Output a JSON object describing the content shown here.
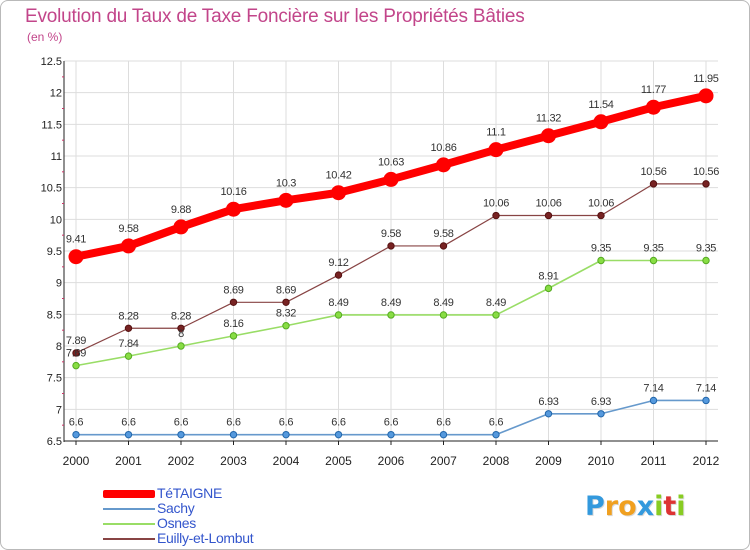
{
  "chart_data": {
    "type": "line",
    "title": "Evolution du Taux de Taxe Foncière sur les Propriétés Bâties",
    "subtitle": "(en %)",
    "x": [
      "2000",
      "2001",
      "2002",
      "2003",
      "2004",
      "2005",
      "2006",
      "2007",
      "2008",
      "2009",
      "2010",
      "2011",
      "2012"
    ],
    "ylim": [
      6.5,
      12.5
    ],
    "yticks": [
      "6.5",
      "7",
      "7.5",
      "8",
      "8.5",
      "9",
      "9.5",
      "10",
      "10.5",
      "11",
      "11.5",
      "12",
      "12.5"
    ],
    "grid": true,
    "legend_placement": "bottom-left",
    "series": [
      {
        "name": "TéTAIGNE",
        "color": "#ff0000",
        "values": [
          9.41,
          9.58,
          9.88,
          10.16,
          10.3,
          10.42,
          10.63,
          10.86,
          11.1,
          11.32,
          11.54,
          11.77,
          11.95
        ],
        "labels": [
          "9.41",
          "9.58",
          "9.88",
          "10.16",
          "10.3",
          "10.42",
          "10.63",
          "10.86",
          "11.1",
          "11.32",
          "11.54",
          "11.77",
          "11.95"
        ]
      },
      {
        "name": "Sachy",
        "color": "#6699cc",
        "values": [
          6.6,
          6.6,
          6.6,
          6.6,
          6.6,
          6.6,
          6.6,
          6.6,
          6.6,
          6.93,
          6.93,
          7.14,
          7.14
        ],
        "labels": [
          "6.6",
          "6.6",
          "6.6",
          "6.6",
          "6.6",
          "6.6",
          "6.6",
          "6.6",
          "6.6",
          "6.93",
          "6.93",
          "7.14",
          "7.14"
        ]
      },
      {
        "name": "Osnes",
        "color": "#99dd66",
        "values": [
          7.69,
          7.84,
          8,
          8.16,
          8.32,
          8.49,
          8.49,
          8.49,
          8.49,
          8.91,
          9.35,
          9.35,
          9.35
        ],
        "labels": [
          "7.69",
          "7.84",
          "8",
          "8.16",
          "8.32",
          "8.49",
          "8.49",
          "8.49",
          "8.49",
          "8.91",
          "9.35",
          "9.35",
          "9.35"
        ]
      },
      {
        "name": "Euilly-et-Lombut",
        "color": "#884444",
        "values": [
          7.89,
          8.28,
          8.28,
          8.69,
          8.69,
          9.12,
          9.58,
          9.58,
          10.06,
          10.06,
          10.06,
          10.56,
          10.56
        ],
        "labels": [
          "7.89",
          "8.28",
          "8.28",
          "8.69",
          "8.69",
          "9.12",
          "9.58",
          "9.58",
          "10.06",
          "10.06",
          "10.06",
          "10.56",
          "10.56"
        ]
      }
    ]
  },
  "watermark": {
    "text": "Proxiti",
    "letters": [
      "P",
      "r",
      "o",
      "x",
      "i",
      "t",
      "i"
    ],
    "colors": [
      "#3399dd",
      "#f0a020",
      "#f0a020",
      "#3399dd",
      "#88cc22",
      "#dd3333",
      "#88cc22"
    ]
  }
}
